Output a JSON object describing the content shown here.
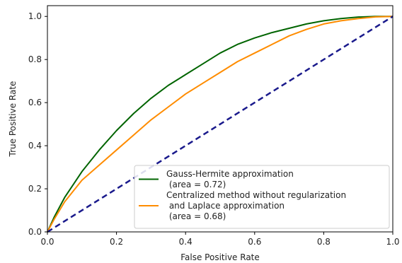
{
  "chart_data": {
    "type": "line",
    "title": "",
    "xlabel": "False Positive Rate",
    "ylabel": "True Positive Rate",
    "xlim": [
      0.0,
      1.0
    ],
    "ylim": [
      0.0,
      1.05
    ],
    "xticks": [
      "0.0",
      "0.2",
      "0.4",
      "0.6",
      "0.8",
      "1.0"
    ],
    "yticks": [
      "0.0",
      "0.2",
      "0.4",
      "0.6",
      "0.8",
      "1.0"
    ],
    "grid": false,
    "legend_position": "lower-right",
    "series": [
      {
        "name": "Gauss-Hermite approximation\n (area = 0.72)",
        "color": "#006400",
        "style": "solid",
        "x": [
          0.0,
          0.02,
          0.05,
          0.1,
          0.15,
          0.2,
          0.25,
          0.3,
          0.35,
          0.4,
          0.45,
          0.5,
          0.55,
          0.6,
          0.65,
          0.7,
          0.75,
          0.8,
          0.85,
          0.9,
          0.95,
          1.0
        ],
        "y": [
          0.0,
          0.07,
          0.16,
          0.28,
          0.38,
          0.47,
          0.55,
          0.62,
          0.68,
          0.73,
          0.78,
          0.83,
          0.87,
          0.9,
          0.925,
          0.945,
          0.965,
          0.98,
          0.99,
          0.997,
          1.0,
          1.0
        ]
      },
      {
        "name": "Centralized method without regularization\n and Laplace approximation\n (area = 0.68)",
        "color": "#ff8c00",
        "style": "solid",
        "x": [
          0.0,
          0.02,
          0.05,
          0.1,
          0.15,
          0.2,
          0.25,
          0.3,
          0.35,
          0.4,
          0.45,
          0.5,
          0.55,
          0.6,
          0.65,
          0.7,
          0.75,
          0.8,
          0.85,
          0.9,
          0.95,
          1.0
        ],
        "y": [
          0.0,
          0.06,
          0.14,
          0.24,
          0.31,
          0.38,
          0.45,
          0.52,
          0.58,
          0.64,
          0.69,
          0.74,
          0.79,
          0.83,
          0.87,
          0.91,
          0.94,
          0.965,
          0.98,
          0.99,
          0.998,
          1.0
        ]
      },
      {
        "name": "",
        "color": "#1a1a8c",
        "style": "dashed",
        "x": [
          0.0,
          1.0
        ],
        "y": [
          0.0,
          1.0
        ]
      }
    ]
  }
}
